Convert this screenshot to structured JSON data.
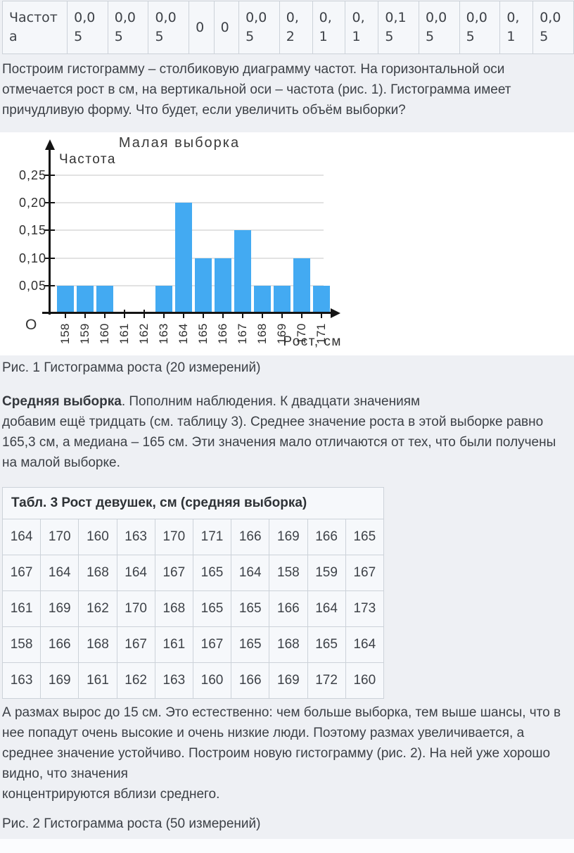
{
  "colors": {
    "page_bg": "#eef0f4",
    "table_cell_bg": "#f5f7fa",
    "table_border": "#ccd2d9",
    "bar_color": "#43aaf2",
    "text": "#3c4046"
  },
  "freq_table": {
    "label": "Частота",
    "values": [
      "0,05",
      "0,05",
      "0,05",
      "0",
      "0",
      "0,05",
      "0,2",
      "0,1",
      "0,1",
      "0,15",
      "0,05",
      "0,05",
      "0,1",
      "0,05"
    ]
  },
  "paragraph1": "Построим гистограмму – столбиковую диаграмму частот. На горизонтальной оси отмечается рост в см, на вертикальной оси – частота (рис. 1). Гистограмма имеет причудливую форму. Что будет, если увеличить объём выборки?",
  "chart_data": {
    "type": "bar",
    "title": "Малая выборка",
    "ylabel": "Частота",
    "xlabel": "Рост, см",
    "origin_label": "О",
    "categories": [
      158,
      159,
      160,
      161,
      162,
      163,
      164,
      165,
      166,
      167,
      168,
      169,
      170,
      171
    ],
    "values": [
      0.05,
      0.05,
      0.05,
      0,
      0,
      0.05,
      0.2,
      0.1,
      0.1,
      0.15,
      0.05,
      0.05,
      0.1,
      0.05
    ],
    "yticks": [
      0.05,
      0.1,
      0.15,
      0.2,
      0.25
    ],
    "ytick_labels": [
      "0,05",
      "0,10",
      "0,15",
      "0,20",
      "0,25"
    ],
    "ylim": [
      0,
      0.27
    ],
    "grid": true,
    "legend": false,
    "bar_color": "#43aaf2"
  },
  "fig1_caption": "Рис. 1 Гистограмма роста (20 измерений)",
  "paragraph2": {
    "bold": "Средняя выборка",
    "text": ". Пополним наблюдения. К двадцати значениям\nдобавим ещё тридцать (см. таблицу 3). Среднее значение роста в этой выборке равно 165,3 см, а медиана – 165 см. Эти значения мало отличаются от тех, что были получены на малой выборке."
  },
  "table3": {
    "title": "Табл. 3 Рост девушек, см (средняя выборка)",
    "rows": [
      [
        164,
        170,
        160,
        163,
        170,
        171,
        166,
        169,
        166,
        165
      ],
      [
        167,
        164,
        168,
        164,
        167,
        165,
        164,
        158,
        159,
        167
      ],
      [
        161,
        169,
        162,
        170,
        168,
        165,
        165,
        166,
        164,
        173
      ],
      [
        158,
        166,
        168,
        167,
        161,
        167,
        165,
        168,
        165,
        164
      ],
      [
        163,
        169,
        161,
        162,
        163,
        160,
        166,
        169,
        172,
        160
      ]
    ]
  },
  "paragraph3": "А размах вырос до 15 см. Это естественно: чем больше выборка, тем выше шансы, что в нее попадут очень высокие и очень низкие люди. Поэтому размах увеличивается, а среднее значение устойчиво. Построим новую гистограмму (рис. 2). На ней уже хорошо видно, что значения\nконцентрируются вблизи среднего.",
  "fig2_caption": "Рис. 2 Гистограмма роста (50 измерений)"
}
